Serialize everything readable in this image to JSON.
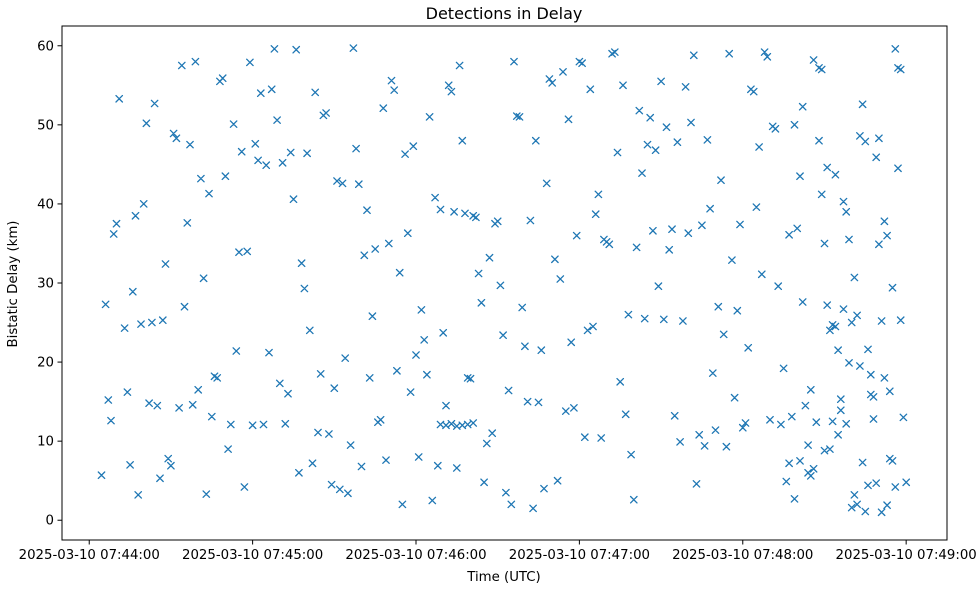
{
  "chart_data": {
    "type": "scatter",
    "title": "Detections in Delay",
    "xlabel": "Time (UTC)",
    "ylabel": "Bistatic Delay (km)",
    "marker": "x",
    "marker_color": "#1f77b4",
    "background_color": "#ffffff",
    "grid": false,
    "x_axis": {
      "unit": "seconds after 2025-03-10 07:44:00 UTC",
      "range": [
        -10,
        315
      ],
      "ticks": [
        {
          "t": 0,
          "label": "2025-03-10 07:44:00"
        },
        {
          "t": 60,
          "label": "2025-03-10 07:45:00"
        },
        {
          "t": 120,
          "label": "2025-03-10 07:46:00"
        },
        {
          "t": 180,
          "label": "2025-03-10 07:47:00"
        },
        {
          "t": 240,
          "label": "2025-03-10 07:48:00"
        },
        {
          "t": 300,
          "label": "2025-03-10 07:49:00"
        }
      ]
    },
    "y_axis": {
      "range": [
        -2.5,
        62.5
      ],
      "ticks": [
        0,
        10,
        20,
        30,
        40,
        50,
        60
      ]
    },
    "points": [
      [
        4.5,
        5.7
      ],
      [
        6,
        27.3
      ],
      [
        7,
        15.2
      ],
      [
        8,
        12.6
      ],
      [
        9,
        36.2
      ],
      [
        10,
        37.5
      ],
      [
        11,
        53.3
      ],
      [
        13,
        24.3
      ],
      [
        14,
        16.2
      ],
      [
        15,
        7.0
      ],
      [
        16,
        28.9
      ],
      [
        17,
        38.5
      ],
      [
        18,
        3.2
      ],
      [
        19,
        24.8
      ],
      [
        20,
        40.0
      ],
      [
        21,
        50.2
      ],
      [
        22,
        14.8
      ],
      [
        23,
        25.0
      ],
      [
        24,
        52.7
      ],
      [
        25,
        14.5
      ],
      [
        26,
        5.3
      ],
      [
        27,
        25.3
      ],
      [
        28,
        32.4
      ],
      [
        29,
        7.8
      ],
      [
        30,
        6.9
      ],
      [
        31,
        48.9
      ],
      [
        32,
        48.3
      ],
      [
        33,
        14.2
      ],
      [
        34,
        57.5
      ],
      [
        35,
        27.0
      ],
      [
        36,
        37.6
      ],
      [
        37,
        47.5
      ],
      [
        38,
        14.6
      ],
      [
        39,
        58.0
      ],
      [
        40,
        16.5
      ],
      [
        41,
        43.2
      ],
      [
        42,
        30.6
      ],
      [
        43,
        3.3
      ],
      [
        44,
        41.3
      ],
      [
        45,
        13.1
      ],
      [
        46,
        18.2
      ],
      [
        47,
        18.0
      ],
      [
        48,
        55.5
      ],
      [
        49,
        55.9
      ],
      [
        50,
        43.5
      ],
      [
        51,
        9.0
      ],
      [
        52,
        12.1
      ],
      [
        53,
        50.1
      ],
      [
        54,
        21.4
      ],
      [
        55,
        33.9
      ],
      [
        56,
        46.6
      ],
      [
        57,
        4.2
      ],
      [
        58,
        34.0
      ],
      [
        59,
        57.9
      ],
      [
        60,
        12.0
      ],
      [
        61,
        47.6
      ],
      [
        62,
        45.5
      ],
      [
        63,
        54.0
      ],
      [
        64,
        12.1
      ],
      [
        65,
        44.9
      ],
      [
        66,
        21.2
      ],
      [
        67,
        54.5
      ],
      [
        68,
        59.6
      ],
      [
        69,
        50.6
      ],
      [
        70,
        17.3
      ],
      [
        71,
        45.2
      ],
      [
        72,
        12.2
      ],
      [
        73,
        16.0
      ],
      [
        74,
        46.5
      ],
      [
        75,
        40.6
      ],
      [
        76,
        59.5
      ],
      [
        77,
        6.0
      ],
      [
        78,
        32.5
      ],
      [
        79,
        29.3
      ],
      [
        80,
        46.4
      ],
      [
        81,
        24.0
      ],
      [
        82,
        7.2
      ],
      [
        83,
        54.1
      ],
      [
        84,
        11.1
      ],
      [
        85,
        18.5
      ],
      [
        86,
        51.2
      ],
      [
        87,
        51.5
      ],
      [
        88,
        10.9
      ],
      [
        89,
        4.5
      ],
      [
        90,
        16.7
      ],
      [
        91,
        42.9
      ],
      [
        92,
        3.9
      ],
      [
        93,
        42.6
      ],
      [
        94,
        20.5
      ],
      [
        95,
        3.4
      ],
      [
        96,
        9.5
      ],
      [
        97,
        59.7
      ],
      [
        98,
        47.0
      ],
      [
        99,
        42.5
      ],
      [
        100,
        6.8
      ],
      [
        101,
        33.5
      ],
      [
        102,
        39.2
      ],
      [
        103,
        18.0
      ],
      [
        104,
        25.8
      ],
      [
        105,
        34.3
      ],
      [
        106,
        12.4
      ],
      [
        107,
        12.7
      ],
      [
        108,
        52.1
      ],
      [
        109,
        7.6
      ],
      [
        110,
        35.0
      ],
      [
        111,
        55.6
      ],
      [
        112,
        54.4
      ],
      [
        113,
        18.9
      ],
      [
        114,
        31.3
      ],
      [
        115,
        2.0
      ],
      [
        116,
        46.3
      ],
      [
        117,
        36.3
      ],
      [
        118,
        16.2
      ],
      [
        119,
        47.3
      ],
      [
        120,
        20.9
      ],
      [
        121,
        8.0
      ],
      [
        122,
        26.6
      ],
      [
        123,
        22.8
      ],
      [
        124,
        18.4
      ],
      [
        125,
        51.0
      ],
      [
        126,
        2.5
      ],
      [
        127,
        40.8
      ],
      [
        128,
        6.9
      ],
      [
        129,
        39.3
      ],
      [
        130,
        23.7
      ],
      [
        131,
        14.5
      ],
      [
        132,
        55.0
      ],
      [
        133,
        54.2
      ],
      [
        134,
        39.0
      ],
      [
        135,
        6.6
      ],
      [
        129,
        12.1
      ],
      [
        131,
        12.0
      ],
      [
        133,
        12.2
      ],
      [
        135,
        11.9
      ],
      [
        137,
        12.0
      ],
      [
        139,
        12.1
      ],
      [
        141,
        12.3
      ],
      [
        136,
        57.5
      ],
      [
        137,
        48.0
      ],
      [
        138,
        38.8
      ],
      [
        139,
        18.0
      ],
      [
        140,
        17.9
      ],
      [
        141,
        38.5
      ],
      [
        142,
        38.3
      ],
      [
        143,
        31.2
      ],
      [
        144,
        27.5
      ],
      [
        145,
        4.8
      ],
      [
        146,
        9.7
      ],
      [
        147,
        33.2
      ],
      [
        148,
        11.0
      ],
      [
        149,
        37.5
      ],
      [
        150,
        37.8
      ],
      [
        151,
        29.7
      ],
      [
        152,
        23.4
      ],
      [
        153,
        3.5
      ],
      [
        154,
        16.4
      ],
      [
        155,
        2.0
      ],
      [
        156,
        58.0
      ],
      [
        157,
        51.1
      ],
      [
        158,
        51.0
      ],
      [
        159,
        26.9
      ],
      [
        160,
        22.0
      ],
      [
        161,
        15.0
      ],
      [
        162,
        37.9
      ],
      [
        163,
        1.5
      ],
      [
        164,
        48.0
      ],
      [
        165,
        14.9
      ],
      [
        166,
        21.5
      ],
      [
        167,
        4.0
      ],
      [
        168,
        42.6
      ],
      [
        169,
        55.8
      ],
      [
        170,
        55.3
      ],
      [
        171,
        33.0
      ],
      [
        172,
        5.0
      ],
      [
        173,
        30.5
      ],
      [
        174,
        56.7
      ],
      [
        175,
        13.8
      ],
      [
        176,
        50.7
      ],
      [
        177,
        22.5
      ],
      [
        178,
        14.2
      ],
      [
        179,
        36.0
      ],
      [
        180,
        58.0
      ],
      [
        181,
        57.8
      ],
      [
        182,
        10.5
      ],
      [
        183,
        24.0
      ],
      [
        184,
        54.5
      ],
      [
        185,
        24.5
      ],
      [
        186,
        38.7
      ],
      [
        187,
        41.2
      ],
      [
        188,
        10.4
      ],
      [
        189,
        35.5
      ],
      [
        190,
        35.2
      ],
      [
        191,
        34.9
      ],
      [
        192,
        59.0
      ],
      [
        193,
        59.2
      ],
      [
        194,
        46.5
      ],
      [
        195,
        17.5
      ],
      [
        196,
        55.0
      ],
      [
        197,
        13.4
      ],
      [
        198,
        26.0
      ],
      [
        199,
        8.3
      ],
      [
        200,
        2.6
      ],
      [
        201,
        34.5
      ],
      [
        202,
        51.8
      ],
      [
        203,
        43.9
      ],
      [
        204,
        25.5
      ],
      [
        205,
        47.5
      ],
      [
        206,
        50.9
      ],
      [
        207,
        36.6
      ],
      [
        208,
        46.8
      ],
      [
        209,
        29.6
      ],
      [
        210,
        55.5
      ],
      [
        211,
        25.4
      ],
      [
        212,
        49.7
      ],
      [
        213,
        34.2
      ],
      [
        214,
        36.8
      ],
      [
        215,
        13.2
      ],
      [
        216,
        47.8
      ],
      [
        217,
        9.9
      ],
      [
        218,
        25.2
      ],
      [
        219,
        54.8
      ],
      [
        220,
        36.3
      ],
      [
        221,
        50.3
      ],
      [
        222,
        58.8
      ],
      [
        223,
        4.6
      ],
      [
        224,
        10.8
      ],
      [
        225,
        37.3
      ],
      [
        226,
        9.4
      ],
      [
        227,
        48.1
      ],
      [
        228,
        39.4
      ],
      [
        229,
        18.6
      ],
      [
        230,
        11.4
      ],
      [
        231,
        27.0
      ],
      [
        232,
        43.0
      ],
      [
        233,
        23.5
      ],
      [
        234,
        9.3
      ],
      [
        235,
        59.0
      ],
      [
        236,
        32.9
      ],
      [
        237,
        15.5
      ],
      [
        238,
        26.5
      ],
      [
        239,
        37.4
      ],
      [
        240,
        11.7
      ],
      [
        241,
        12.3
      ],
      [
        242,
        21.8
      ],
      [
        243,
        54.5
      ],
      [
        244,
        54.2
      ],
      [
        245,
        39.6
      ],
      [
        246,
        47.2
      ],
      [
        247,
        31.1
      ],
      [
        248,
        59.2
      ],
      [
        249,
        58.6
      ],
      [
        250,
        12.7
      ],
      [
        251,
        49.8
      ],
      [
        252,
        49.5
      ],
      [
        253,
        29.6
      ],
      [
        254,
        12.1
      ],
      [
        255,
        19.2
      ],
      [
        256,
        4.9
      ],
      [
        257,
        36.1
      ],
      [
        258,
        13.1
      ],
      [
        259,
        50.0
      ],
      [
        260,
        36.9
      ],
      [
        261,
        43.5
      ],
      [
        262,
        52.3
      ],
      [
        263,
        14.5
      ],
      [
        264,
        9.5
      ],
      [
        265,
        16.5
      ],
      [
        266,
        58.2
      ],
      [
        267,
        12.4
      ],
      [
        268,
        57.2
      ],
      [
        269,
        57.0
      ],
      [
        270,
        35.0
      ],
      [
        271,
        44.6
      ],
      [
        272,
        24.0
      ],
      [
        273,
        12.5
      ],
      [
        274,
        43.7
      ],
      [
        275,
        21.5
      ],
      [
        276,
        13.9
      ],
      [
        277,
        40.3
      ],
      [
        278,
        12.2
      ],
      [
        279,
        35.5
      ],
      [
        280,
        1.6
      ],
      [
        281,
        30.7
      ],
      [
        282,
        25.9
      ],
      [
        283,
        48.6
      ],
      [
        284,
        52.6
      ],
      [
        285,
        47.9
      ],
      [
        286,
        21.6
      ],
      [
        287,
        18.4
      ],
      [
        288,
        12.8
      ],
      [
        289,
        4.7
      ],
      [
        290,
        48.3
      ],
      [
        291,
        1.0
      ],
      [
        292,
        18.0
      ],
      [
        293,
        36.0
      ],
      [
        294,
        16.3
      ],
      [
        295,
        29.4
      ],
      [
        296,
        59.6
      ],
      [
        257,
        7.2
      ],
      [
        259,
        2.7
      ],
      [
        261,
        7.5
      ],
      [
        262,
        27.6
      ],
      [
        264,
        6.0
      ],
      [
        265,
        5.6
      ],
      [
        266,
        6.5
      ],
      [
        268,
        48.0
      ],
      [
        269,
        41.2
      ],
      [
        270,
        8.8
      ],
      [
        271,
        27.2
      ],
      [
        272,
        9.0
      ],
      [
        273,
        24.7
      ],
      [
        274,
        24.5
      ],
      [
        275,
        10.8
      ],
      [
        276,
        15.3
      ],
      [
        277,
        26.7
      ],
      [
        278,
        39.0
      ],
      [
        279,
        19.9
      ],
      [
        280,
        25.0
      ],
      [
        281,
        3.2
      ],
      [
        282,
        2.0
      ],
      [
        283,
        19.5
      ],
      [
        284,
        7.3
      ],
      [
        285,
        1.1
      ],
      [
        286,
        4.4
      ],
      [
        287,
        15.9
      ],
      [
        288,
        15.6
      ],
      [
        289,
        45.9
      ],
      [
        290,
        34.9
      ],
      [
        291,
        25.2
      ],
      [
        292,
        37.8
      ],
      [
        293,
        1.9
      ],
      [
        294,
        7.8
      ],
      [
        295,
        7.5
      ],
      [
        296,
        4.2
      ],
      [
        297,
        44.5
      ],
      [
        298,
        25.3
      ],
      [
        299,
        13.0
      ],
      [
        300,
        4.8
      ],
      [
        297,
        57.2
      ],
      [
        298,
        57.0
      ]
    ]
  }
}
